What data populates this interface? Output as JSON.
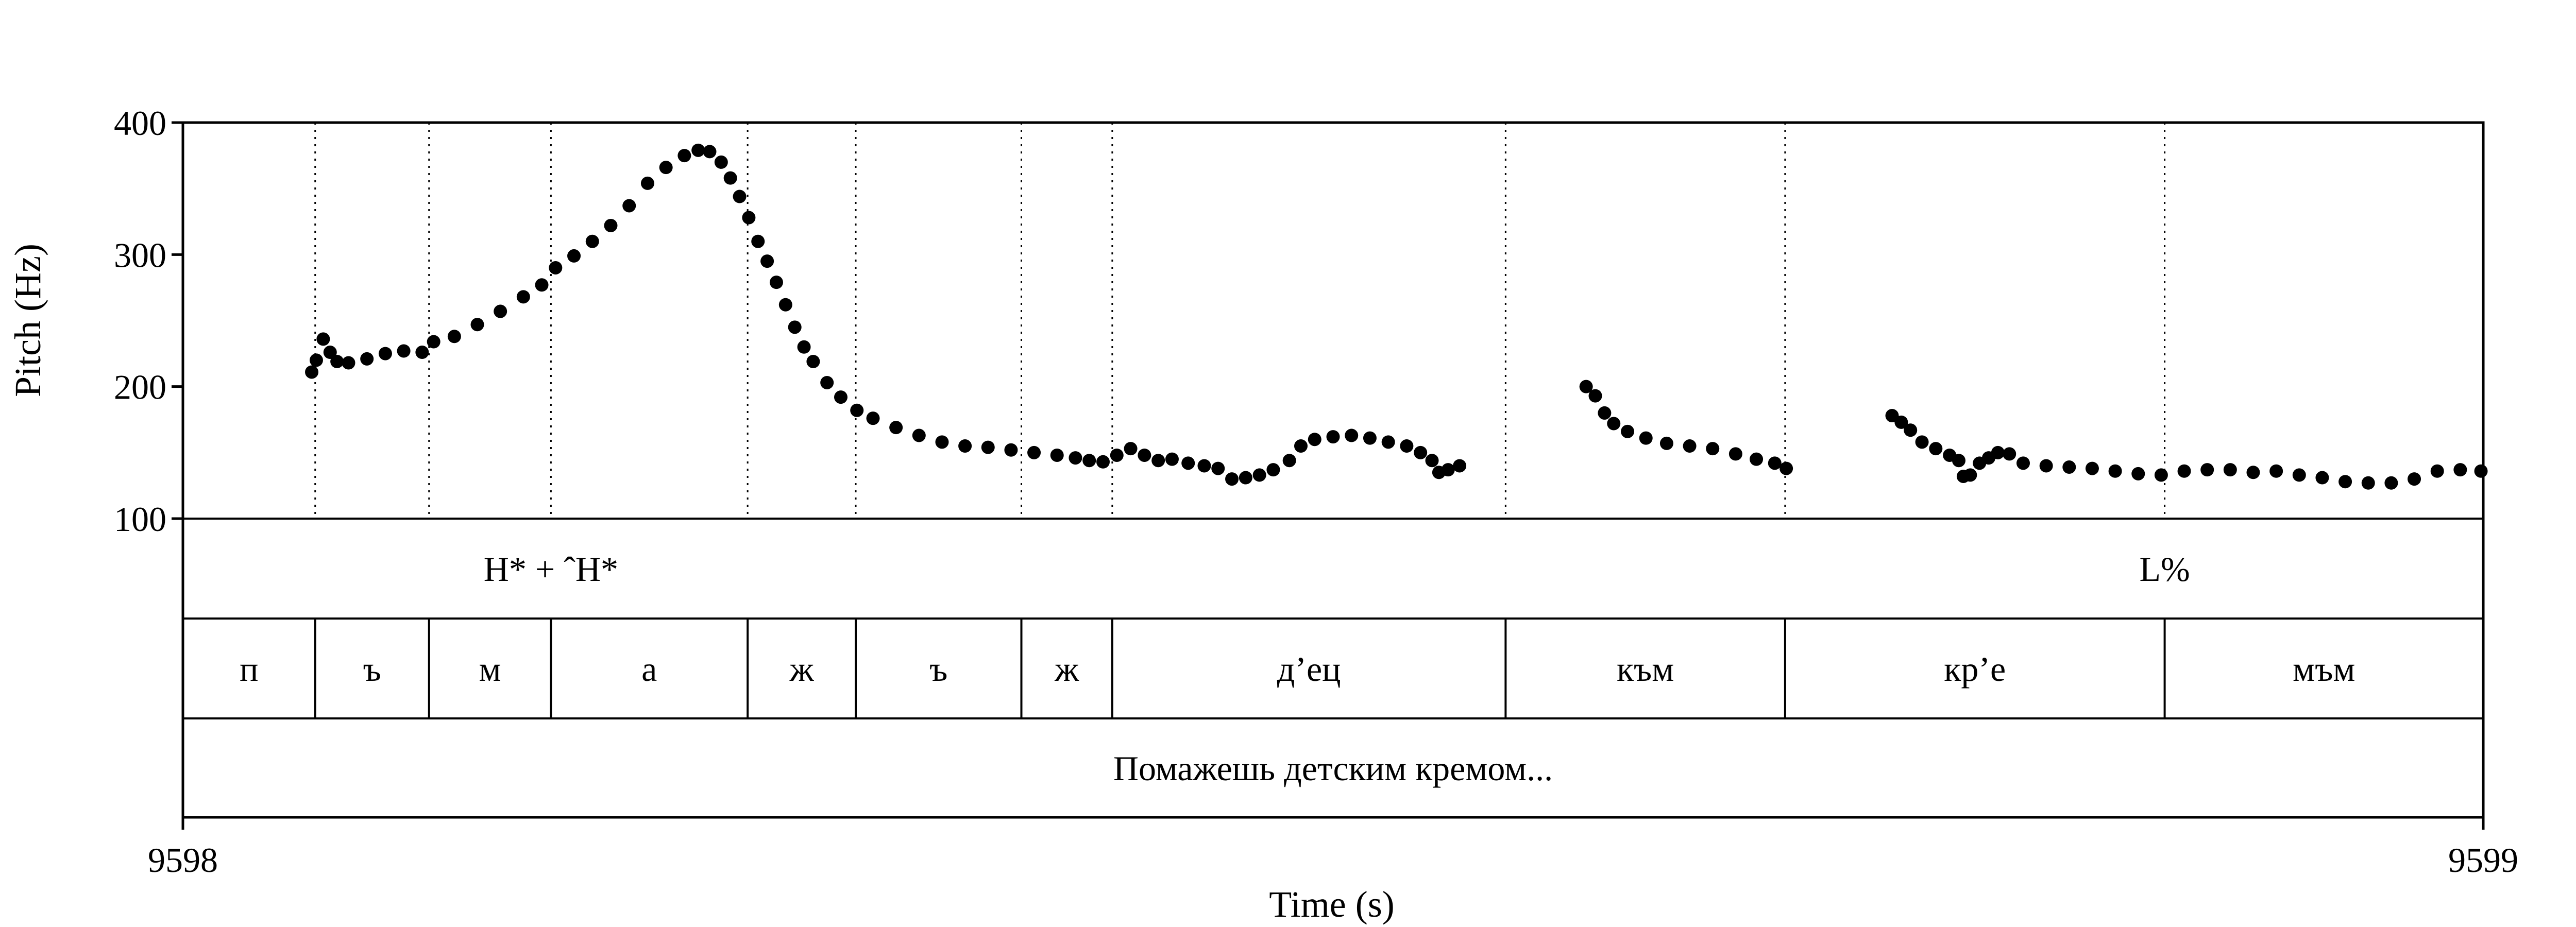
{
  "chart_data": {
    "type": "scatter",
    "xlabel": "Time (s)",
    "ylabel": "Pitch (Hz)",
    "xlim": [
      9598,
      9599
    ],
    "ylim": [
      100,
      400
    ],
    "x_tick_labels": [
      "9598",
      "9599"
    ],
    "y_tick_labels": [
      "400",
      "300",
      "200",
      "100"
    ],
    "y_ticks": [
      400,
      300,
      200,
      100
    ],
    "grid": false,
    "boundaries": [
      9598.0575,
      9598.107,
      9598.16,
      9598.2455,
      9598.2925,
      9598.3645,
      9598.404,
      9598.575,
      9598.6965,
      9598.8615
    ],
    "tiers": {
      "tones": {
        "labels": [
          {
            "text": "H* + ˆH*",
            "t": 9598.16
          },
          {
            "text": "L%",
            "t": 9598.8615
          }
        ]
      },
      "segments": {
        "labels": [
          "п",
          "ъ",
          "м",
          "а",
          "ж",
          "ъ",
          "ж",
          "д’ец",
          "към",
          "кр’е",
          "мъм"
        ]
      },
      "phrase": {
        "labels": [
          "Помажешь детским кремом..."
        ]
      }
    },
    "series": [
      {
        "values": [
          [
            9598.056,
            211
          ],
          [
            9598.058,
            220
          ],
          [
            9598.061,
            236
          ],
          [
            9598.064,
            226
          ],
          [
            9598.067,
            219
          ],
          [
            9598.072,
            218
          ],
          [
            9598.08,
            221
          ],
          [
            9598.088,
            225
          ],
          [
            9598.096,
            227
          ],
          [
            9598.104,
            226
          ],
          [
            9598.109,
            234
          ],
          [
            9598.118,
            238
          ],
          [
            9598.128,
            247
          ],
          [
            9598.138,
            257
          ],
          [
            9598.148,
            268
          ],
          [
            9598.156,
            277
          ],
          [
            9598.162,
            290
          ],
          [
            9598.17,
            299
          ],
          [
            9598.178,
            310
          ],
          [
            9598.186,
            322
          ],
          [
            9598.194,
            337
          ],
          [
            9598.202,
            354
          ],
          [
            9598.21,
            366
          ],
          [
            9598.218,
            375
          ],
          [
            9598.224,
            379
          ],
          [
            9598.229,
            378
          ],
          [
            9598.234,
            370
          ],
          [
            9598.238,
            358
          ],
          [
            9598.242,
            344
          ],
          [
            9598.246,
            328
          ],
          [
            9598.25,
            310
          ],
          [
            9598.254,
            295
          ],
          [
            9598.258,
            279
          ],
          [
            9598.262,
            262
          ],
          [
            9598.266,
            245
          ],
          [
            9598.27,
            230
          ],
          [
            9598.274,
            219
          ],
          [
            9598.28,
            203
          ],
          [
            9598.286,
            192
          ],
          [
            9598.293,
            182
          ],
          [
            9598.3,
            176
          ],
          [
            9598.31,
            169
          ],
          [
            9598.32,
            163
          ],
          [
            9598.33,
            158
          ],
          [
            9598.34,
            155
          ],
          [
            9598.35,
            154
          ],
          [
            9598.36,
            152
          ],
          [
            9598.37,
            150
          ],
          [
            9598.38,
            148
          ],
          [
            9598.388,
            146
          ],
          [
            9598.394,
            144
          ],
          [
            9598.4,
            143
          ],
          [
            9598.406,
            148
          ],
          [
            9598.412,
            153
          ],
          [
            9598.418,
            148
          ],
          [
            9598.424,
            144
          ],
          [
            9598.43,
            145
          ],
          [
            9598.437,
            142
          ],
          [
            9598.444,
            140
          ],
          [
            9598.45,
            138
          ],
          [
            9598.456,
            130
          ],
          [
            9598.462,
            131
          ],
          [
            9598.468,
            133
          ],
          [
            9598.474,
            137
          ],
          [
            9598.481,
            144
          ],
          [
            9598.486,
            155
          ],
          [
            9598.492,
            160
          ],
          [
            9598.5,
            162
          ],
          [
            9598.508,
            163
          ],
          [
            9598.516,
            161
          ],
          [
            9598.524,
            158
          ],
          [
            9598.532,
            155
          ],
          [
            9598.538,
            150
          ],
          [
            9598.543,
            144
          ],
          [
            9598.546,
            135
          ],
          [
            9598.55,
            137
          ],
          [
            9598.555,
            140
          ],
          [
            9598.61,
            200
          ],
          [
            9598.614,
            193
          ],
          [
            9598.618,
            180
          ],
          [
            9598.622,
            172
          ],
          [
            9598.628,
            166
          ],
          [
            9598.636,
            161
          ],
          [
            9598.645,
            157
          ],
          [
            9598.655,
            155
          ],
          [
            9598.665,
            153
          ],
          [
            9598.675,
            149
          ],
          [
            9598.684,
            145
          ],
          [
            9598.692,
            142
          ],
          [
            9598.697,
            138
          ],
          [
            9598.743,
            178
          ],
          [
            9598.747,
            173
          ],
          [
            9598.751,
            167
          ],
          [
            9598.756,
            158
          ],
          [
            9598.762,
            153
          ],
          [
            9598.768,
            148
          ],
          [
            9598.772,
            144
          ],
          [
            9598.774,
            132
          ],
          [
            9598.777,
            133
          ],
          [
            9598.781,
            142
          ],
          [
            9598.785,
            146
          ],
          [
            9598.789,
            150
          ],
          [
            9598.794,
            149
          ],
          [
            9598.8,
            142
          ],
          [
            9598.81,
            140
          ],
          [
            9598.82,
            139
          ],
          [
            9598.83,
            138
          ],
          [
            9598.84,
            136
          ],
          [
            9598.85,
            134
          ],
          [
            9598.86,
            133
          ],
          [
            9598.87,
            136
          ],
          [
            9598.88,
            137
          ],
          [
            9598.89,
            137
          ],
          [
            9598.9,
            135
          ],
          [
            9598.91,
            136
          ],
          [
            9598.92,
            133
          ],
          [
            9598.93,
            131
          ],
          [
            9598.94,
            128
          ],
          [
            9598.95,
            127
          ],
          [
            9598.96,
            127
          ],
          [
            9598.97,
            130
          ],
          [
            9598.98,
            136
          ],
          [
            9598.99,
            137
          ],
          [
            9598.999,
            136
          ]
        ]
      }
    ]
  }
}
